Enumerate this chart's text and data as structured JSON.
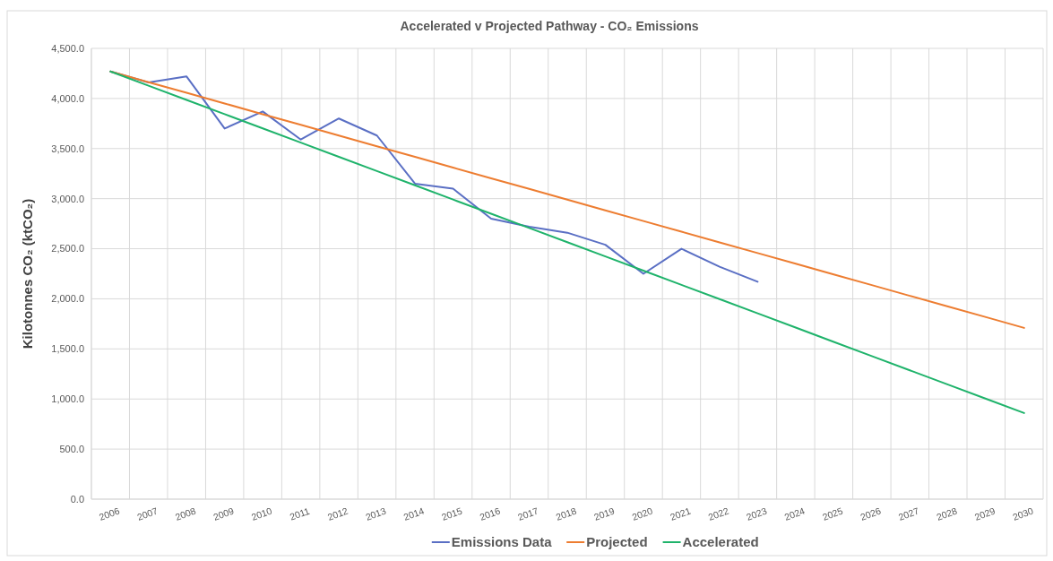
{
  "chart_data": {
    "type": "line",
    "title": "Accelerated v Projected Pathway - CO₂ Emissions",
    "ylabel": "Kilotonnes CO₂ (ktCO₂)",
    "categories": [
      "2006",
      "2007",
      "2008",
      "2009",
      "2010",
      "2011",
      "2012",
      "2013",
      "2014",
      "2015",
      "2016",
      "2017",
      "2018",
      "2019",
      "2020",
      "2021",
      "2022",
      "2023",
      "2024",
      "2025",
      "2026",
      "2027",
      "2028",
      "2029",
      "2030"
    ],
    "series": [
      {
        "name": "Emissions Data",
        "color": "#5a6fc4",
        "values": [
          4270,
          4160,
          4220,
          3700,
          3870,
          3590,
          3800,
          3630,
          3150,
          3100,
          2800,
          2720,
          2660,
          2540,
          2250,
          2500,
          2320,
          2170,
          null,
          null,
          null,
          null,
          null,
          null,
          null
        ]
      },
      {
        "name": "Projected",
        "color": "#ed7d31",
        "values": [
          4270,
          4163,
          4057,
          3950,
          3843,
          3737,
          3630,
          3523,
          3417,
          3310,
          3203,
          3097,
          2990,
          2883,
          2777,
          2670,
          2563,
          2457,
          2350,
          2243,
          2137,
          2030,
          1923,
          1817,
          1710
        ]
      },
      {
        "name": "Accelerated",
        "color": "#1fb36b",
        "values": [
          4270,
          4128,
          3986,
          3844,
          3702,
          3560,
          3418,
          3275,
          3133,
          2991,
          2849,
          2707,
          2565,
          2423,
          2281,
          2139,
          1997,
          1855,
          1713,
          1570,
          1428,
          1286,
          1144,
          1002,
          860
        ]
      }
    ],
    "ylim": [
      0,
      4500
    ],
    "yticks": [
      {
        "value": 0,
        "label": "0.0"
      },
      {
        "value": 500,
        "label": "500.0"
      },
      {
        "value": 1000,
        "label": "1,000.0"
      },
      {
        "value": 1500,
        "label": "1,500.0"
      },
      {
        "value": 2000,
        "label": "2,000.0"
      },
      {
        "value": 2500,
        "label": "2,500.0"
      },
      {
        "value": 3000,
        "label": "3,000.0"
      },
      {
        "value": 3500,
        "label": "3,500.0"
      },
      {
        "value": 4000,
        "label": "4,000.0"
      },
      {
        "value": 4500,
        "label": "4,500.0"
      }
    ],
    "grid": true,
    "legend": "bottom",
    "marker": "none",
    "line_style": "solid"
  }
}
